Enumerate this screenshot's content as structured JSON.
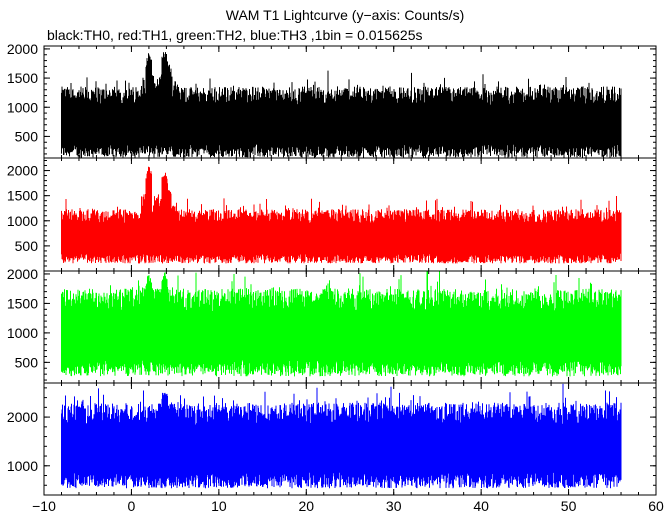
{
  "chart_data": {
    "type": "line",
    "title": "WAM T1 Lightcurve (y−axis: Counts/s)",
    "subtitle": "black:TH0, red:TH1, green:TH2, blue:TH3 ,1bin = 0.015625s",
    "xlim": [
      -10,
      60
    ],
    "x_ticks": [
      -10,
      0,
      10,
      20,
      30,
      40,
      50,
      60
    ],
    "x_tick_labels": [
      "−10",
      "0",
      "10",
      "20",
      "30",
      "40",
      "50",
      "60"
    ],
    "data_x_range": [
      -8,
      56
    ],
    "bin_size_s": 0.015625,
    "grid": false,
    "panels": [
      {
        "name": "TH0",
        "color": "#000000",
        "ylim": [
          130,
          2050
        ],
        "y_ticks": [
          500,
          1000,
          1500,
          2000
        ],
        "y_tick_labels": [
          "500",
          "1000",
          "1500",
          "2000"
        ],
        "baseline": 690,
        "upper_envelope": 1150,
        "lower_envelope": 250,
        "bursts": [
          {
            "x": 2.0,
            "peak": 1950
          },
          {
            "x": 3.8,
            "peak": 2000
          },
          {
            "x": 4.2,
            "peak": 1800
          }
        ]
      },
      {
        "name": "TH1",
        "color": "#ff0000",
        "ylim": [
          0,
          2250
        ],
        "y_ticks": [
          500,
          1000,
          1500,
          2000
        ],
        "y_tick_labels": [
          "500",
          "1000",
          "1500",
          "2000"
        ],
        "baseline": 600,
        "upper_envelope": 1050,
        "lower_envelope": 250,
        "bursts": [
          {
            "x": 2.0,
            "peak": 2100
          },
          {
            "x": 3.8,
            "peak": 2000
          },
          {
            "x": 4.2,
            "peak": 1700
          }
        ]
      },
      {
        "name": "TH2",
        "color": "#00ff00",
        "ylim": [
          150,
          2050
        ],
        "y_ticks": [
          500,
          1000,
          1500,
          2000
        ],
        "y_tick_labels": [
          "500",
          "1000",
          "1500",
          "2000"
        ],
        "baseline": 850,
        "upper_envelope": 1500,
        "lower_envelope": 400,
        "bursts": [
          {
            "x": 2.0,
            "peak": 2050
          },
          {
            "x": 3.8,
            "peak": 2050
          }
        ]
      },
      {
        "name": "TH3",
        "color": "#0000ff",
        "ylim": [
          400,
          2700
        ],
        "y_ticks": [
          1000,
          2000
        ],
        "y_tick_labels": [
          "1000",
          "2000"
        ],
        "baseline": 1250,
        "upper_envelope": 2000,
        "lower_envelope": 700,
        "bursts": [
          {
            "x": 3.8,
            "peak": 2600
          }
        ]
      }
    ]
  }
}
